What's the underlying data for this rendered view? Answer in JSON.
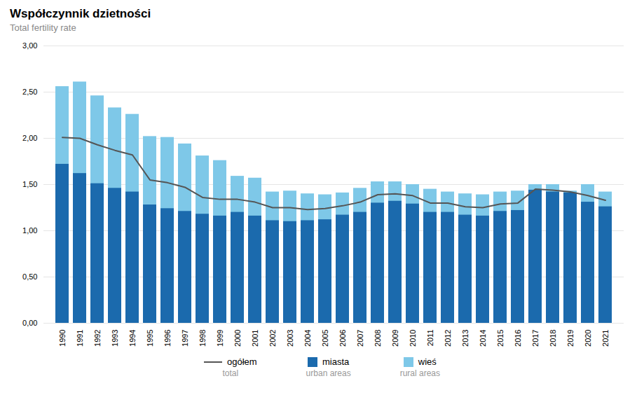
{
  "chart_data": {
    "type": "bar",
    "title": "Współczynnik dzietności",
    "subtitle": "Total fertility rate",
    "categories": [
      "1990",
      "1991",
      "1992",
      "1993",
      "1994",
      "1995",
      "1996",
      "1997",
      "1998",
      "1999",
      "2000",
      "2001",
      "2002",
      "2003",
      "2004",
      "2005",
      "2006",
      "2007",
      "2008",
      "2009",
      "2010",
      "2011",
      "2012",
      "2013",
      "2014",
      "2015",
      "2016",
      "2017",
      "2018",
      "2019",
      "2020",
      "2021"
    ],
    "series": [
      {
        "name": "wieś",
        "sublabel": "rural areas",
        "type": "bar",
        "color": "#7ec8e8",
        "values": [
          2.56,
          2.61,
          2.46,
          2.33,
          2.26,
          2.02,
          2.01,
          1.94,
          1.81,
          1.76,
          1.59,
          1.57,
          1.42,
          1.43,
          1.4,
          1.39,
          1.41,
          1.46,
          1.53,
          1.53,
          1.5,
          1.45,
          1.42,
          1.4,
          1.39,
          1.42,
          1.43,
          1.5,
          1.5,
          1.43,
          1.5,
          1.42
        ]
      },
      {
        "name": "miasta",
        "sublabel": "urban areas",
        "type": "bar",
        "color": "#1b6aad",
        "values": [
          1.72,
          1.62,
          1.51,
          1.46,
          1.42,
          1.28,
          1.24,
          1.21,
          1.18,
          1.16,
          1.2,
          1.16,
          1.11,
          1.1,
          1.11,
          1.12,
          1.17,
          1.2,
          1.3,
          1.32,
          1.29,
          1.2,
          1.2,
          1.17,
          1.16,
          1.21,
          1.22,
          1.44,
          1.42,
          1.41,
          1.31,
          1.26
        ]
      },
      {
        "name": "ogółem",
        "sublabel": "total",
        "type": "line",
        "color": "#555555",
        "values": [
          2.01,
          2.0,
          1.93,
          1.87,
          1.82,
          1.55,
          1.52,
          1.47,
          1.36,
          1.34,
          1.34,
          1.31,
          1.25,
          1.25,
          1.23,
          1.24,
          1.27,
          1.31,
          1.39,
          1.4,
          1.38,
          1.3,
          1.3,
          1.26,
          1.25,
          1.29,
          1.3,
          1.45,
          1.44,
          1.42,
          1.38,
          1.33
        ]
      }
    ],
    "stacked": false,
    "ylim": [
      0,
      3
    ],
    "yticks": [
      {
        "value": 0,
        "label": "0,00"
      },
      {
        "value": 0.5,
        "label": "0,50"
      },
      {
        "value": 1,
        "label": "1,00"
      },
      {
        "value": 1.5,
        "label": "1,50"
      },
      {
        "value": 2,
        "label": "2,00"
      },
      {
        "value": 2.5,
        "label": "2,50"
      },
      {
        "value": 3,
        "label": "3,00"
      }
    ],
    "grid": true,
    "legend": "bottom"
  }
}
